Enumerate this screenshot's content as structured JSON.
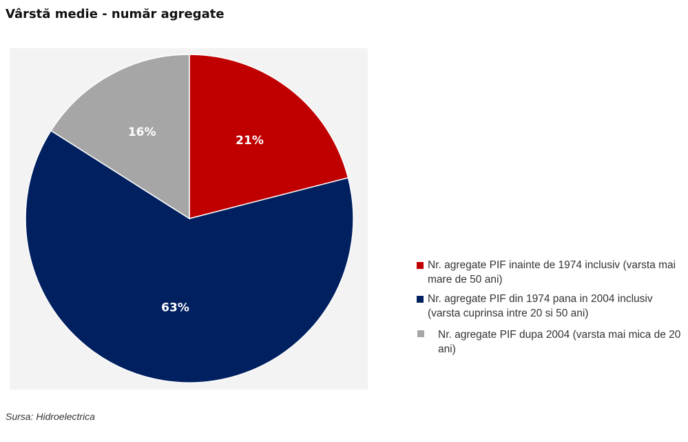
{
  "title": "Vârstă medie - număr agregate",
  "source": "Sursa: Hidroelectrica",
  "chart_data": {
    "type": "pie",
    "title": "Vârstă medie - număr agregate",
    "start_angle": "12 o'clock",
    "direction": "clockwise",
    "slices": [
      {
        "label": "Nr. agregate PIF inainte de 1974 inclusiv (varsta mai mare de 50 ani)",
        "value": 21,
        "display": "21%",
        "color": "#c00000"
      },
      {
        "label": "Nr. agregate PIF din 1974 pana in 2004 inclusiv (varsta cuprinsa intre 20 si 50 ani)",
        "value": 63,
        "display": "63%",
        "color": "#002060"
      },
      {
        "label": "Nr. agregate PIF dupa 2004 (varsta mai mica de 20 ani)",
        "value": 16,
        "display": "16%",
        "color": "#a6a6a6"
      }
    ],
    "legend_position": "right"
  }
}
